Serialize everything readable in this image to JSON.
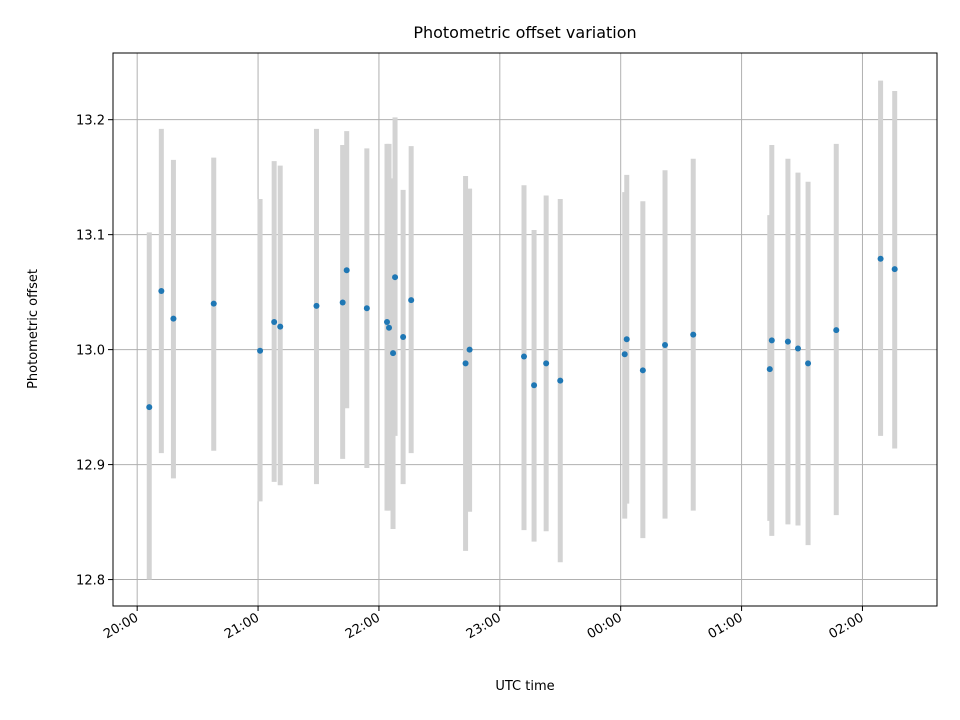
{
  "chart_data": {
    "type": "scatter",
    "title": "Photometric offset variation",
    "xlabel": "UTC time",
    "ylabel": "Photometric offset",
    "x_ticks": [
      "20:00",
      "21:00",
      "22:00",
      "23:00",
      "00:00",
      "01:00",
      "02:00"
    ],
    "y_ticks": [
      "12.8",
      "12.9",
      "13.0",
      "13.1",
      "13.2"
    ],
    "xlim": [
      "19:48",
      "02:37"
    ],
    "ylim": [
      12.777,
      13.258
    ],
    "grid": true,
    "colors": {
      "points": "#1f77b4",
      "errorbars": "#d3d3d3",
      "grid": "#b0b0b0"
    },
    "points": [
      {
        "t": "20:06",
        "y": 12.95,
        "lo": 12.8,
        "hi": 13.102
      },
      {
        "t": "20:12",
        "y": 13.051,
        "lo": 12.91,
        "hi": 13.192
      },
      {
        "t": "20:18",
        "y": 13.027,
        "lo": 12.888,
        "hi": 13.165
      },
      {
        "t": "20:38",
        "y": 13.04,
        "lo": 12.912,
        "hi": 13.167
      },
      {
        "t": "21:01",
        "y": 12.999,
        "lo": 12.868,
        "hi": 13.131
      },
      {
        "t": "21:08",
        "y": 13.024,
        "lo": 12.885,
        "hi": 13.164
      },
      {
        "t": "21:11",
        "y": 13.02,
        "lo": 12.882,
        "hi": 13.16
      },
      {
        "t": "21:29",
        "y": 13.038,
        "lo": 12.883,
        "hi": 13.192
      },
      {
        "t": "21:42",
        "y": 13.041,
        "lo": 12.905,
        "hi": 13.178
      },
      {
        "t": "21:44",
        "y": 13.069,
        "lo": 12.949,
        "hi": 13.19
      },
      {
        "t": "21:54",
        "y": 13.036,
        "lo": 12.897,
        "hi": 13.175
      },
      {
        "t": "22:04",
        "y": 13.024,
        "lo": 12.86,
        "hi": 13.179
      },
      {
        "t": "22:05",
        "y": 13.019,
        "lo": 12.86,
        "hi": 13.179
      },
      {
        "t": "22:07",
        "y": 12.997,
        "lo": 12.844,
        "hi": 13.149
      },
      {
        "t": "22:08",
        "y": 13.063,
        "lo": 12.925,
        "hi": 13.202
      },
      {
        "t": "22:12",
        "y": 13.011,
        "lo": 12.883,
        "hi": 13.139
      },
      {
        "t": "22:16",
        "y": 13.043,
        "lo": 12.91,
        "hi": 13.177
      },
      {
        "t": "22:43",
        "y": 12.988,
        "lo": 12.825,
        "hi": 13.151
      },
      {
        "t": "22:45",
        "y": 13.0,
        "lo": 12.859,
        "hi": 13.14
      },
      {
        "t": "23:12",
        "y": 12.994,
        "lo": 12.843,
        "hi": 13.143
      },
      {
        "t": "23:17",
        "y": 12.969,
        "lo": 12.833,
        "hi": 13.104
      },
      {
        "t": "23:23",
        "y": 12.988,
        "lo": 12.842,
        "hi": 13.134
      },
      {
        "t": "23:30",
        "y": 12.973,
        "lo": 12.815,
        "hi": 13.131
      },
      {
        "t": "00:02",
        "y": 12.996,
        "lo": 12.853,
        "hi": 13.137
      },
      {
        "t": "00:03",
        "y": 13.009,
        "lo": 12.866,
        "hi": 13.152
      },
      {
        "t": "00:11",
        "y": 12.982,
        "lo": 12.836,
        "hi": 13.129
      },
      {
        "t": "00:22",
        "y": 13.004,
        "lo": 12.853,
        "hi": 13.156
      },
      {
        "t": "00:36",
        "y": 13.013,
        "lo": 12.86,
        "hi": 13.166
      },
      {
        "t": "01:14",
        "y": 12.983,
        "lo": 12.851,
        "hi": 13.117
      },
      {
        "t": "01:15",
        "y": 13.008,
        "lo": 12.838,
        "hi": 13.178
      },
      {
        "t": "01:23",
        "y": 13.007,
        "lo": 12.848,
        "hi": 13.166
      },
      {
        "t": "01:28",
        "y": 13.001,
        "lo": 12.847,
        "hi": 13.154
      },
      {
        "t": "01:33",
        "y": 12.988,
        "lo": 12.83,
        "hi": 13.146
      },
      {
        "t": "01:47",
        "y": 13.017,
        "lo": 12.856,
        "hi": 13.179
      },
      {
        "t": "02:09",
        "y": 13.079,
        "lo": 12.925,
        "hi": 13.234
      },
      {
        "t": "02:16",
        "y": 13.07,
        "lo": 12.914,
        "hi": 13.225
      }
    ]
  }
}
